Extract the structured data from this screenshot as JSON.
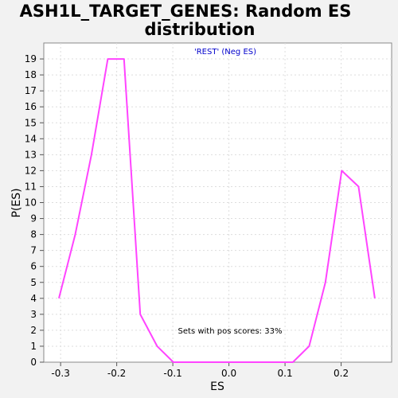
{
  "chart_data": {
    "type": "line",
    "title_line1": "ASH1L_TARGET_GENES: Random ES",
    "title_line2": "distribution",
    "xlabel": "ES",
    "ylabel": "P(ES)",
    "xlim": [
      -0.33,
      0.29
    ],
    "ylim": [
      0,
      20
    ],
    "xticks": [
      -0.3,
      -0.2,
      -0.1,
      0.0,
      0.1,
      0.2
    ],
    "xtick_labels": [
      "-0.3",
      "-0.2",
      "-0.1",
      "0.0",
      "0.1",
      "0.2"
    ],
    "yticks": [
      0,
      1,
      2,
      3,
      4,
      5,
      6,
      7,
      8,
      9,
      10,
      11,
      12,
      13,
      14,
      15,
      16,
      17,
      18,
      19
    ],
    "grid": true,
    "annotation_top": "'REST' (Neg ES)",
    "annotation_bottom": "Sets with pos scores: 33%",
    "series": [
      {
        "color": "#ff44ff",
        "x": [
          -0.303,
          -0.274,
          -0.245,
          -0.216,
          -0.187,
          -0.158,
          -0.128,
          -0.099,
          -0.07,
          -0.041,
          -0.012,
          0.017,
          0.046,
          0.075,
          0.104,
          0.114,
          0.143,
          0.172,
          0.201,
          0.231,
          0.26
        ],
        "y": [
          4,
          8,
          13,
          19,
          19,
          3,
          1,
          0,
          0,
          0,
          0,
          0,
          0,
          0,
          0,
          0,
          1,
          5,
          12,
          11,
          4
        ]
      }
    ],
    "colors": {
      "background": "#f2f2f2",
      "plot_background": "#ffffff",
      "grid": "#dddddd",
      "annotation": "#0000cc",
      "axis": "#555555"
    }
  }
}
